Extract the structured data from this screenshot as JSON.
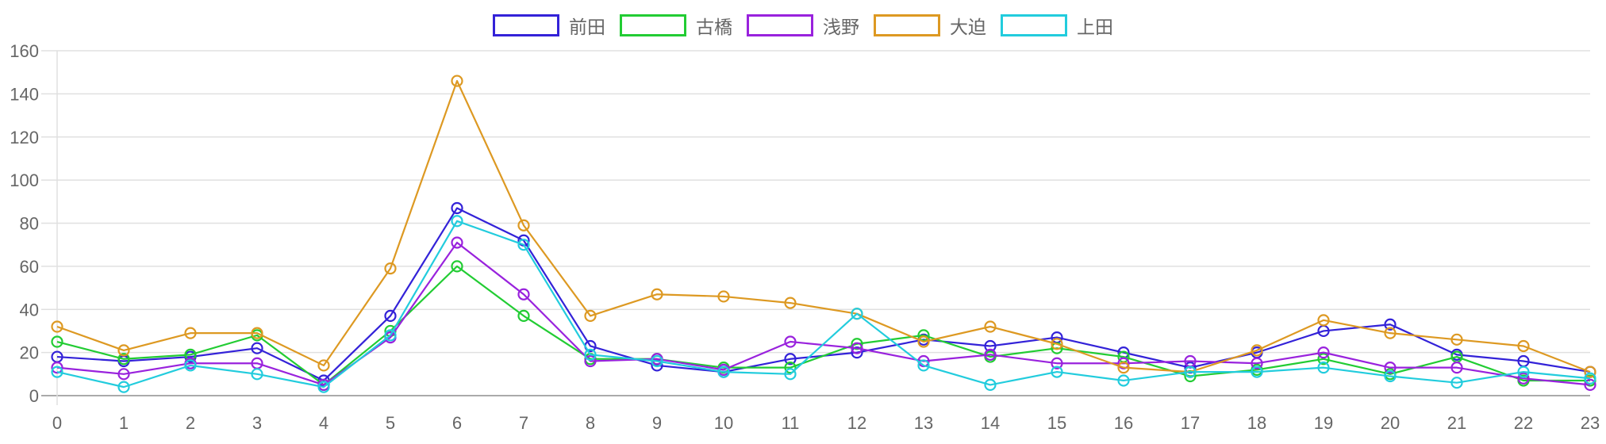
{
  "chart_data": {
    "type": "line",
    "title": "",
    "xlabel": "",
    "ylabel": "",
    "x": [
      0,
      1,
      2,
      3,
      4,
      5,
      6,
      7,
      8,
      9,
      10,
      11,
      12,
      13,
      14,
      15,
      16,
      17,
      18,
      19,
      20,
      21,
      22,
      23
    ],
    "ylim": [
      0,
      160
    ],
    "yticks": [
      0,
      20,
      40,
      60,
      80,
      100,
      120,
      140,
      160
    ],
    "grid": true,
    "legend_position": "top",
    "series": [
      {
        "name": "前田",
        "color": "#3322d8",
        "values": [
          18,
          16,
          18,
          22,
          7,
          37,
          87,
          72,
          23,
          14,
          11,
          17,
          20,
          26,
          23,
          27,
          20,
          13,
          20,
          30,
          33,
          19,
          16,
          11
        ]
      },
      {
        "name": "古橋",
        "color": "#22cc33",
        "values": [
          25,
          17,
          19,
          28,
          5,
          30,
          60,
          37,
          17,
          17,
          13,
          13,
          24,
          28,
          18,
          22,
          18,
          9,
          12,
          17,
          10,
          18,
          7,
          7
        ]
      },
      {
        "name": "浅野",
        "color": "#9922dd",
        "values": [
          13,
          10,
          15,
          15,
          5,
          27,
          71,
          47,
          16,
          17,
          12,
          25,
          22,
          16,
          19,
          15,
          15,
          16,
          15,
          20,
          13,
          13,
          8,
          5
        ]
      },
      {
        "name": "大迫",
        "color": "#dd9922",
        "values": [
          32,
          21,
          29,
          29,
          14,
          59,
          146,
          79,
          37,
          47,
          46,
          43,
          38,
          25,
          32,
          24,
          13,
          11,
          21,
          35,
          29,
          26,
          23,
          11
        ]
      },
      {
        "name": "上田",
        "color": "#22ccdd",
        "values": [
          11,
          4,
          14,
          10,
          4,
          28,
          81,
          70,
          19,
          16,
          11,
          10,
          38,
          14,
          5,
          11,
          7,
          11,
          11,
          13,
          9,
          6,
          11,
          8
        ]
      }
    ]
  },
  "legend": {
    "items": [
      {
        "label": "前田",
        "color": "#3322d8"
      },
      {
        "label": "古橋",
        "color": "#22cc33"
      },
      {
        "label": "浅野",
        "color": "#9922dd"
      },
      {
        "label": "大迫",
        "color": "#dd9922"
      },
      {
        "label": "上田",
        "color": "#22ccdd"
      }
    ]
  },
  "axes": {
    "y_labels": [
      "0",
      "20",
      "40",
      "60",
      "80",
      "100",
      "120",
      "140",
      "160"
    ],
    "x_labels": [
      "0",
      "1",
      "2",
      "3",
      "4",
      "5",
      "6",
      "7",
      "8",
      "9",
      "10",
      "11",
      "12",
      "13",
      "14",
      "15",
      "16",
      "17",
      "18",
      "19",
      "20",
      "21",
      "22",
      "23"
    ],
    "grid_color": "#e0e0e0",
    "axis_color": "#aaaaaa"
  }
}
